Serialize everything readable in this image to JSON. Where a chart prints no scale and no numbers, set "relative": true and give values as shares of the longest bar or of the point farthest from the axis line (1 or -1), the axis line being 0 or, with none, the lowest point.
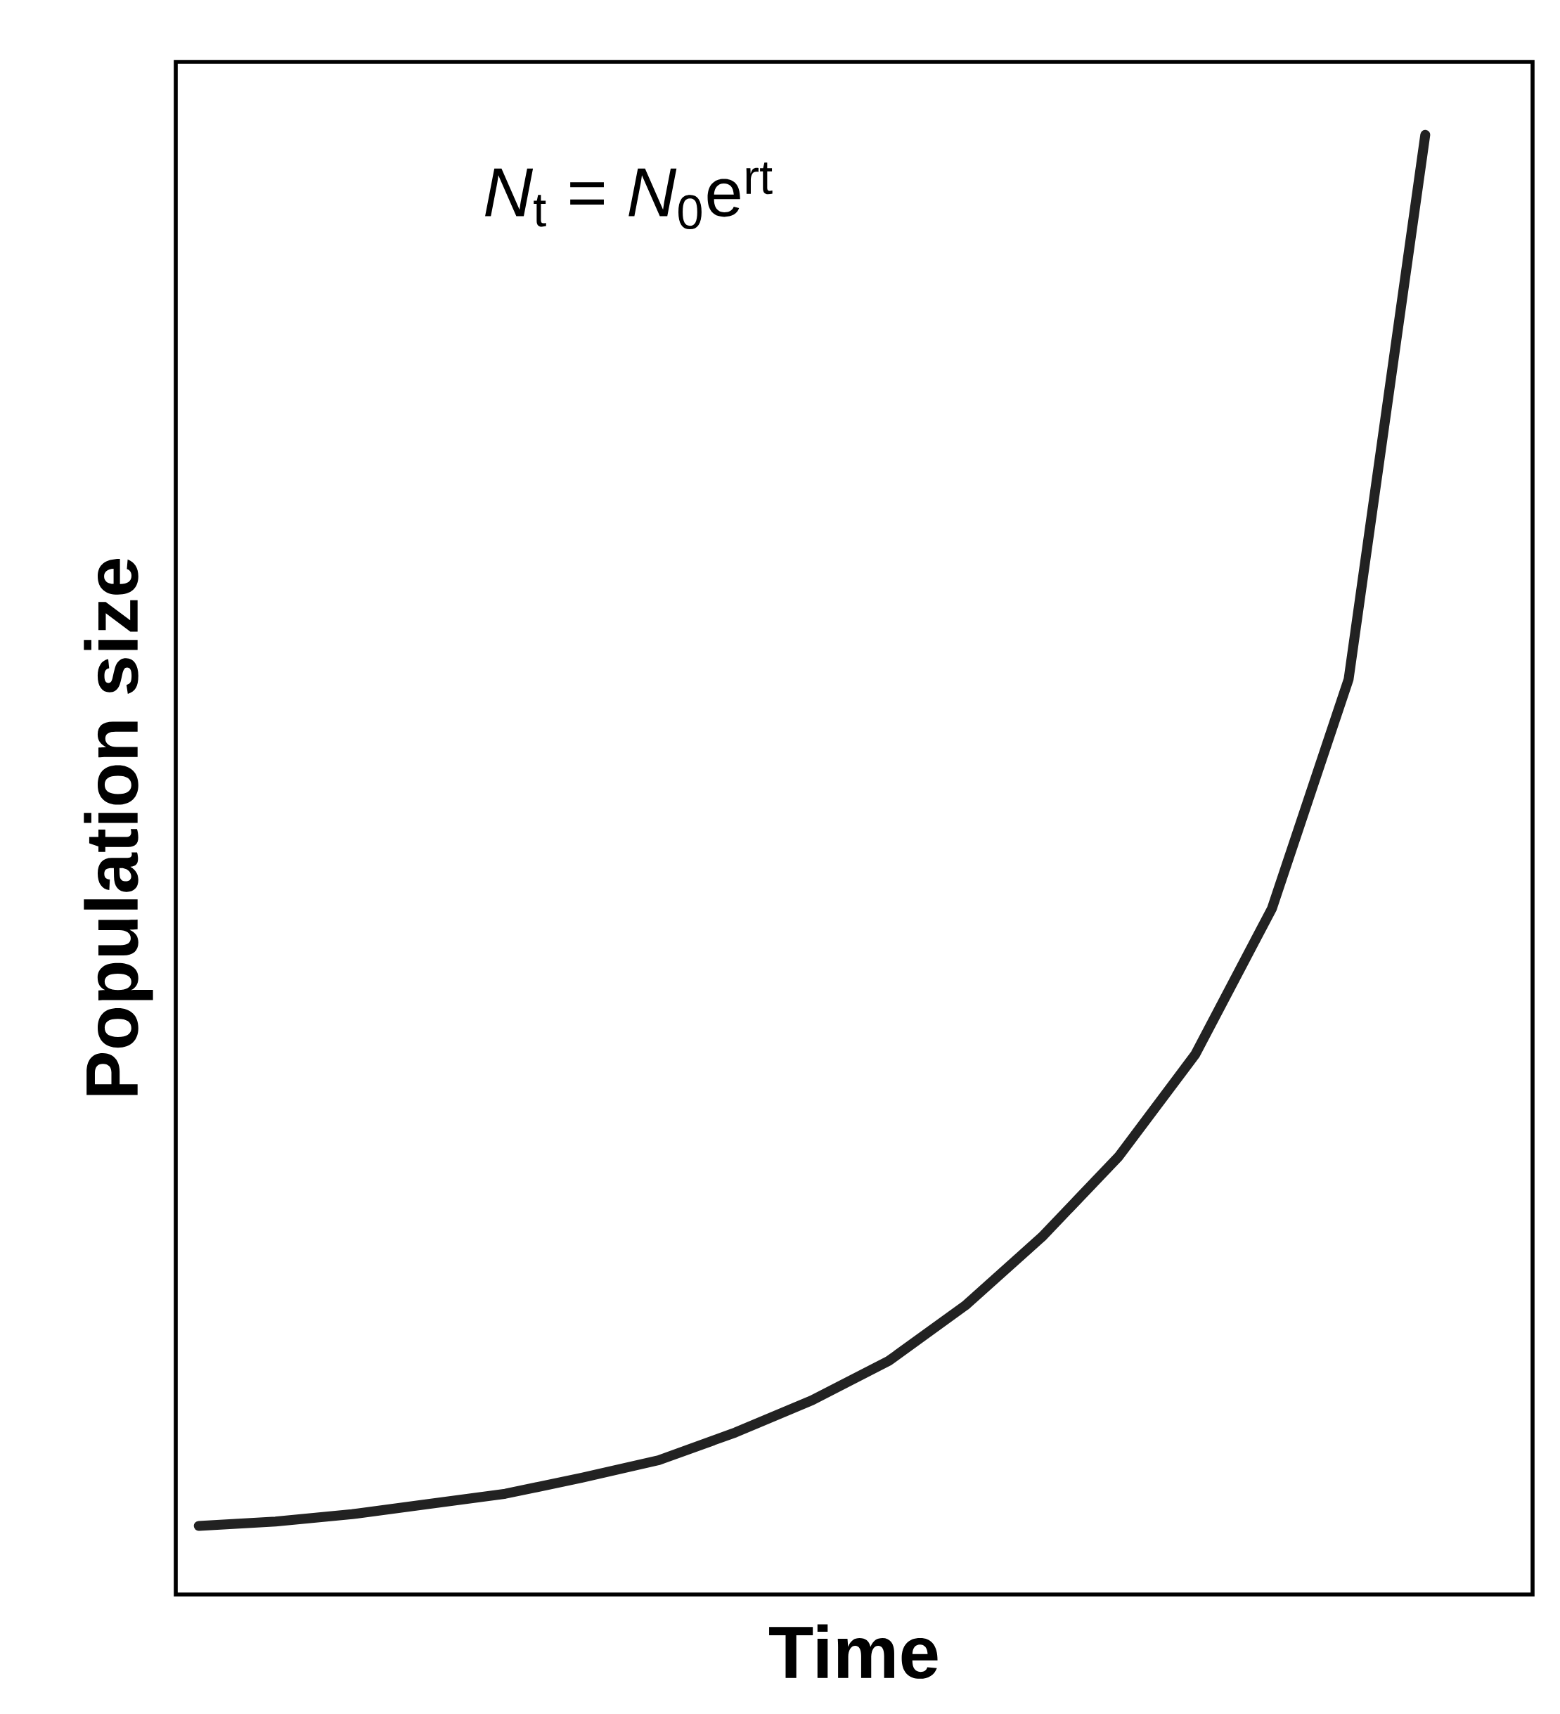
{
  "chart_data": {
    "type": "line",
    "relative": true,
    "xlabel": "Time",
    "ylabel": "Population size",
    "annotations": [
      "*N*$_{t}$ = *N*$_{0}$e$^{rt}$"
    ],
    "categories": [
      null,
      null,
      null,
      null,
      null,
      null,
      null,
      null,
      null,
      null,
      null,
      null,
      null,
      null,
      null,
      null,
      null
    ],
    "series": [
      {
        "color": "#222222",
        "values": [
          0.047,
          0.05,
          0.055,
          0.062,
          0.069,
          0.08,
          0.092,
          0.111,
          0.133,
          0.16,
          0.198,
          0.245,
          0.3,
          0.37,
          0.47,
          0.627,
          1.0
        ]
      }
    ]
  }
}
